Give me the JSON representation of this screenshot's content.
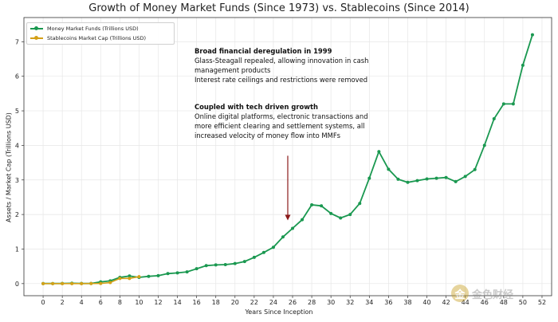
{
  "chart_data": {
    "type": "line",
    "title": "Growth of Money Market Funds (Since 1973) vs. Stablecoins (Since 2014)",
    "xlabel": "Years Since Inception",
    "ylabel": "Assets / Market Cap (Trillions USD)",
    "xlim": [
      -2,
      53
    ],
    "ylim": [
      -0.35,
      7.7
    ],
    "xticks": [
      0,
      2,
      4,
      6,
      8,
      10,
      12,
      14,
      16,
      18,
      20,
      22,
      24,
      26,
      28,
      30,
      32,
      34,
      36,
      38,
      40,
      42,
      44,
      46,
      48,
      50,
      52
    ],
    "yticks": [
      0,
      1,
      2,
      3,
      4,
      5,
      6,
      7
    ],
    "grid": true,
    "legend_position": "top-left",
    "series": [
      {
        "name": "Money Market Funds (Trillions USD)",
        "color": "#1a9850",
        "x": [
          0,
          1,
          2,
          3,
          4,
          5,
          6,
          7,
          8,
          9,
          10,
          11,
          12,
          13,
          14,
          15,
          16,
          17,
          18,
          19,
          20,
          21,
          22,
          23,
          24,
          25,
          26,
          27,
          28,
          29,
          30,
          31,
          32,
          33,
          34,
          35,
          36,
          37,
          38,
          39,
          40,
          41,
          42,
          43,
          44,
          45,
          46,
          47,
          48,
          49,
          50,
          51
        ],
        "y": [
          0.002,
          0.003,
          0.004,
          0.01,
          0.004,
          0.004,
          0.05,
          0.08,
          0.18,
          0.22,
          0.18,
          0.21,
          0.23,
          0.29,
          0.31,
          0.34,
          0.43,
          0.52,
          0.54,
          0.55,
          0.58,
          0.64,
          0.76,
          0.9,
          1.05,
          1.35,
          1.6,
          1.85,
          2.28,
          2.25,
          2.03,
          1.9,
          2.0,
          2.32,
          3.05,
          3.82,
          3.31,
          3.02,
          2.93,
          2.98,
          3.03,
          3.05,
          3.07,
          2.95,
          3.1,
          3.3,
          4.0,
          4.77,
          5.2,
          5.2,
          6.32,
          7.2
        ]
      },
      {
        "name": "Stablecoins Market Cap (Trillions USD)",
        "color": "#d4a017",
        "x": [
          0,
          1,
          2,
          3,
          4,
          5,
          6,
          7,
          8,
          9,
          10
        ],
        "y": [
          0.0,
          0.0,
          0.0,
          0.0,
          0.0,
          0.002,
          0.005,
          0.03,
          0.15,
          0.15,
          0.2
        ]
      }
    ],
    "annotations": [
      {
        "lines": [
          {
            "text": "Broad financial deregulation in 1999",
            "bold": true
          },
          {
            "text": "Glass-Steagall repealed, allowing innovation in cash",
            "bold": false
          },
          {
            "text": "management products",
            "bold": false
          },
          {
            "text": "Interest rate ceilings and restrictions were removed",
            "bold": false
          }
        ]
      },
      {
        "lines": [
          {
            "text": "Coupled with tech driven growth",
            "bold": true
          },
          {
            "text": "Online digital platforms, electronic transactions and",
            "bold": false
          },
          {
            "text": "more efficient clearing and settlement systems, all",
            "bold": false
          },
          {
            "text": "increased velocity of money flow into MMFs",
            "bold": false
          }
        ]
      }
    ],
    "arrow": {
      "from": [
        25.5,
        3.7
      ],
      "to": [
        25.5,
        1.83
      ],
      "color": "#8b1a1a"
    }
  },
  "watermark": {
    "logo": "金",
    "text": "金色财经"
  }
}
